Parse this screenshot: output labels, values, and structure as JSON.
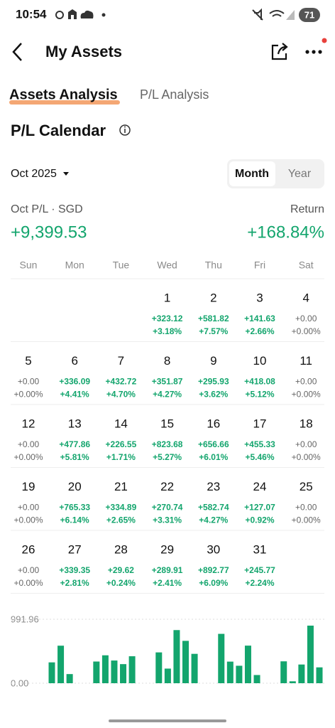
{
  "status_bar": {
    "time": "10:54",
    "battery": "71"
  },
  "header": {
    "title": "My Assets"
  },
  "tabs": [
    "Assets Analysis",
    "P/L Analysis"
  ],
  "section": {
    "title": "P/L Calendar"
  },
  "month_selector": "Oct 2025",
  "toggle": [
    "Month",
    "Year"
  ],
  "summary": {
    "label": "Oct P/L · SGD",
    "return_label": "Return",
    "pl": "+9,399.53",
    "return": "+168.84%"
  },
  "calendar": {
    "weekdays": [
      "Sun",
      "Mon",
      "Tue",
      "Wed",
      "Thu",
      "Fri",
      "Sat"
    ],
    "days": [
      {
        "date": "1",
        "pl": "+323.12",
        "pct": "+3.18%"
      },
      {
        "date": "2",
        "pl": "+581.82",
        "pct": "+7.57%"
      },
      {
        "date": "3",
        "pl": "+141.63",
        "pct": "+2.66%"
      },
      {
        "date": "4",
        "pl": "+0.00",
        "pct": "+0.00%"
      },
      {
        "date": "5",
        "pl": "+0.00",
        "pct": "+0.00%"
      },
      {
        "date": "6",
        "pl": "+336.09",
        "pct": "+4.41%"
      },
      {
        "date": "7",
        "pl": "+432.72",
        "pct": "+4.70%"
      },
      {
        "date": "8",
        "pl": "+351.87",
        "pct": "+4.27%"
      },
      {
        "date": "9",
        "pl": "+295.93",
        "pct": "+3.62%"
      },
      {
        "date": "10",
        "pl": "+418.08",
        "pct": "+5.12%"
      },
      {
        "date": "11",
        "pl": "+0.00",
        "pct": "+0.00%"
      },
      {
        "date": "12",
        "pl": "+0.00",
        "pct": "+0.00%"
      },
      {
        "date": "13",
        "pl": "+477.86",
        "pct": "+5.81%"
      },
      {
        "date": "14",
        "pl": "+226.55",
        "pct": "+1.71%"
      },
      {
        "date": "15",
        "pl": "+823.68",
        "pct": "+5.27%"
      },
      {
        "date": "16",
        "pl": "+656.66",
        "pct": "+6.01%"
      },
      {
        "date": "17",
        "pl": "+455.33",
        "pct": "+5.46%"
      },
      {
        "date": "18",
        "pl": "+0.00",
        "pct": "+0.00%"
      },
      {
        "date": "19",
        "pl": "+0.00",
        "pct": "+0.00%"
      },
      {
        "date": "20",
        "pl": "+765.33",
        "pct": "+6.14%"
      },
      {
        "date": "21",
        "pl": "+334.89",
        "pct": "+2.65%"
      },
      {
        "date": "22",
        "pl": "+270.74",
        "pct": "+3.31%"
      },
      {
        "date": "23",
        "pl": "+582.74",
        "pct": "+4.27%"
      },
      {
        "date": "24",
        "pl": "+127.07",
        "pct": "+0.92%"
      },
      {
        "date": "25",
        "pl": "+0.00",
        "pct": "+0.00%"
      },
      {
        "date": "26",
        "pl": "+0.00",
        "pct": "+0.00%"
      },
      {
        "date": "27",
        "pl": "+339.35",
        "pct": "+2.81%"
      },
      {
        "date": "28",
        "pl": "+29.62",
        "pct": "+0.24%"
      },
      {
        "date": "29",
        "pl": "+289.91",
        "pct": "+2.41%"
      },
      {
        "date": "30",
        "pl": "+892.77",
        "pct": "+6.09%"
      },
      {
        "date": "31",
        "pl": "+245.77",
        "pct": "+2.24%"
      }
    ]
  },
  "chart_data": {
    "type": "bar",
    "color": "#13a56d",
    "values": [
      323.12,
      581.82,
      141.63,
      0,
      0,
      336.09,
      432.72,
      351.87,
      295.93,
      418.08,
      0,
      0,
      477.86,
      226.55,
      823.68,
      656.66,
      455.33,
      0,
      0,
      765.33,
      334.89,
      270.74,
      582.74,
      127.07,
      0,
      0,
      339.35,
      29.62,
      289.91,
      892.77,
      245.77
    ],
    "ylim": [
      0,
      991.96
    ],
    "yticks": [
      {
        "value": 0,
        "label": "0.00"
      },
      991.96
    ]
  }
}
